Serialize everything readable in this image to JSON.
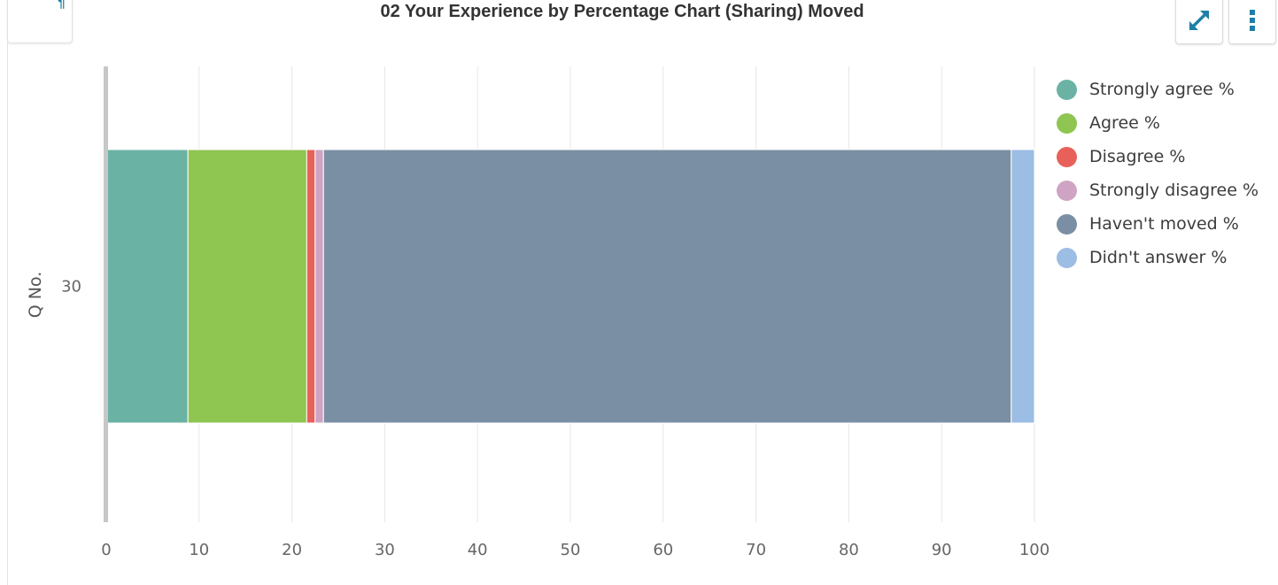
{
  "header": {
    "title": "02 Your Experience by Percentage Chart (Sharing) Moved",
    "left_tab_glyph": "¶"
  },
  "toolbar": {
    "expand_icon": "expand-arrows-icon",
    "menu_icon": "vertical-dots-icon",
    "accent_color": "#1f7fa5"
  },
  "chart_data": {
    "type": "bar",
    "orientation": "horizontal",
    "stacked": true,
    "title": "02 Your Experience by Percentage Chart (Sharing) Moved",
    "ylabel": "Q No.",
    "xlabel": "",
    "categories": [
      "30"
    ],
    "xlim": [
      0,
      100
    ],
    "x_ticks": [
      "0",
      "10",
      "20",
      "30",
      "40",
      "50",
      "60",
      "70",
      "80",
      "90",
      "100"
    ],
    "grid": true,
    "legend_position": "right",
    "series": [
      {
        "name": "Strongly agree %",
        "color": "#6ab3a4",
        "values": [
          8.8
        ]
      },
      {
        "name": "Agree %",
        "color": "#8fc551",
        "values": [
          12.8
        ]
      },
      {
        "name": "Disagree %",
        "color": "#e8605a",
        "values": [
          0.9
        ]
      },
      {
        "name": "Strongly disagree %",
        "color": "#cfa3c3",
        "values": [
          0.9
        ]
      },
      {
        "name": "Haven't moved %",
        "color": "#7a8fa3",
        "values": [
          74.1
        ]
      },
      {
        "name": "Didn't answer %",
        "color": "#9cbde4",
        "values": [
          2.5
        ]
      }
    ]
  }
}
